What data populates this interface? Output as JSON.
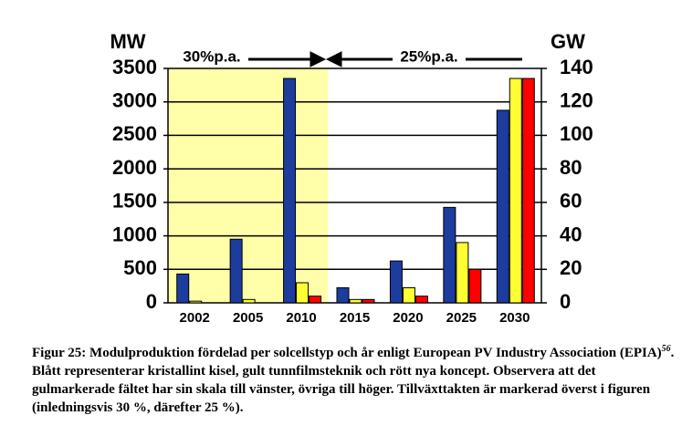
{
  "chart_data": {
    "type": "bar",
    "categories": [
      "2002",
      "2005",
      "2010",
      "2015",
      "2020",
      "2025",
      "2030"
    ],
    "series": [
      {
        "color": "#1c3c9e",
        "axis": "y",
        "values": [
          430,
          950,
          3350,
          null,
          null,
          null,
          null
        ]
      },
      {
        "color": "#ffff33",
        "axis": "y",
        "values": [
          25,
          50,
          300,
          null,
          null,
          null,
          null
        ]
      },
      {
        "color": "#ff0000",
        "axis": "y",
        "values": [
          null,
          null,
          100,
          null,
          null,
          null,
          null
        ]
      },
      {
        "color": "#1c3c9e",
        "axis": "y2",
        "values": [
          null,
          null,
          null,
          9,
          25,
          57,
          115
        ]
      },
      {
        "color": "#ffff33",
        "axis": "y2",
        "values": [
          null,
          null,
          null,
          2,
          9,
          36,
          134
        ]
      },
      {
        "color": "#ff0000",
        "axis": "y2",
        "values": [
          null,
          null,
          null,
          2,
          4,
          20,
          134
        ]
      }
    ],
    "ylabel": "MW",
    "y2label": "GW",
    "ylim": [
      0,
      3500
    ],
    "yticks": [
      0,
      500,
      1000,
      1500,
      2000,
      2500,
      3000,
      3500
    ],
    "y2lim": [
      0,
      140
    ],
    "y2ticks": [
      0,
      20,
      40,
      60,
      80,
      100,
      120,
      140
    ],
    "grid": true,
    "highlight_color": "#ffffaa",
    "annotations": [
      "30%p.a.",
      "25%p.a."
    ]
  },
  "caption": {
    "before": "Figur 25: Modulproduktion fördelad per solcellstyp och år enligt European PV Industry Association (EPIA)",
    "footnote": "56",
    "after": ". Blått representerar kristallint kisel, gult tunnfilmsteknik och rött nya koncept. Observera att det gulmarkerade fältet har sin skala till vänster, övriga till höger. Tillväxttakten är markerad överst i figuren (inledningsvis 30 %, därefter 25 %)."
  }
}
